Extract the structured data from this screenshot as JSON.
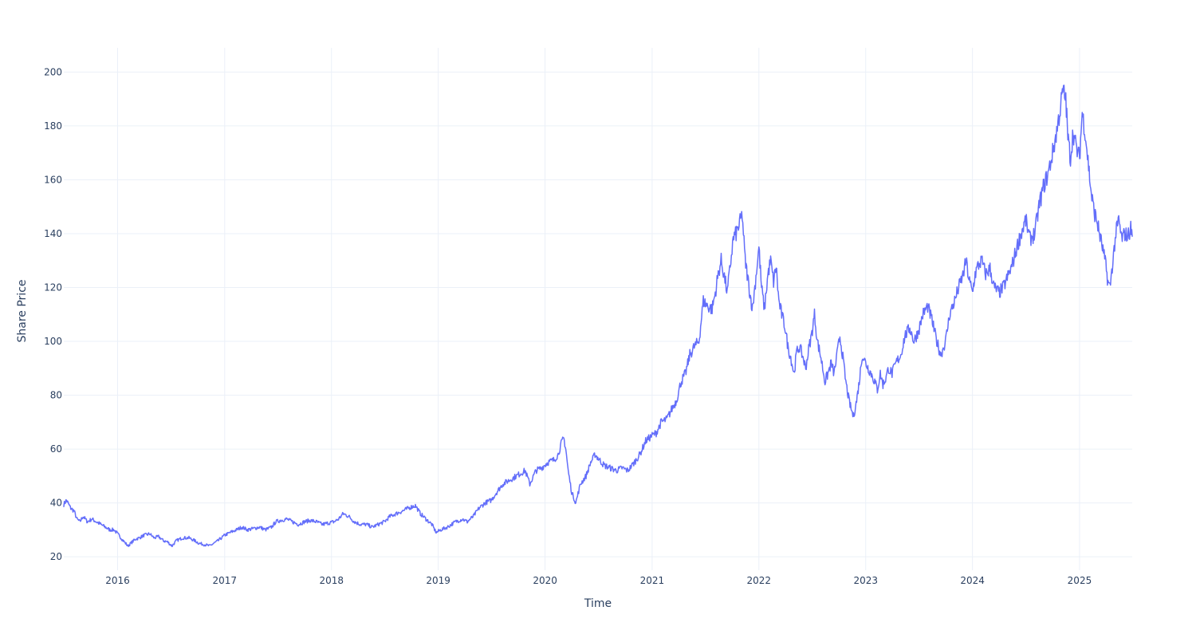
{
  "chart_data": {
    "type": "line",
    "title": "",
    "xlabel": "Time",
    "ylabel": "Share Price",
    "xlim": [
      "2015-07-01",
      "2025-06-30"
    ],
    "ylim": [
      15,
      209
    ],
    "x_ticks": [
      "2016",
      "2017",
      "2018",
      "2019",
      "2020",
      "2021",
      "2022",
      "2023",
      "2024",
      "2025"
    ],
    "y_ticks": [
      20,
      40,
      60,
      80,
      100,
      120,
      140,
      160,
      180,
      200
    ],
    "grid": true,
    "legend": "none",
    "colors": {
      "line": "#636efa",
      "grid": "#ebf0f8",
      "text": "#2a3f5f"
    },
    "series": [
      {
        "x": [
          "2015-07-01",
          "2015-07-10",
          "2015-07-25",
          "2015-08-05",
          "2015-08-15",
          "2015-08-25",
          "2015-09-05",
          "2015-09-20",
          "2015-10-05",
          "2015-10-20",
          "2015-11-05",
          "2015-11-20",
          "2015-12-05",
          "2015-12-20",
          "2016-01-05",
          "2016-01-20",
          "2016-02-05",
          "2016-02-15",
          "2016-03-01",
          "2016-03-15",
          "2016-04-01",
          "2016-04-20",
          "2016-05-05",
          "2016-05-20",
          "2016-06-05",
          "2016-06-20",
          "2016-07-05",
          "2016-07-20",
          "2016-08-10",
          "2016-09-01",
          "2016-09-20",
          "2016-10-05",
          "2016-10-25",
          "2016-11-10",
          "2016-11-25",
          "2016-12-10",
          "2017-01-01",
          "2017-01-20",
          "2017-02-10",
          "2017-03-01",
          "2017-03-20",
          "2017-04-10",
          "2017-05-01",
          "2017-05-20",
          "2017-06-10",
          "2017-06-25",
          "2017-07-10",
          "2017-08-01",
          "2017-08-20",
          "2017-09-10",
          "2017-10-01",
          "2017-10-20",
          "2017-11-10",
          "2017-12-01",
          "2017-12-20",
          "2018-01-10",
          "2018-01-25",
          "2018-02-10",
          "2018-03-01",
          "2018-03-20",
          "2018-04-10",
          "2018-05-01",
          "2018-05-20",
          "2018-06-10",
          "2018-07-01",
          "2018-07-20",
          "2018-08-10",
          "2018-09-01",
          "2018-09-20",
          "2018-10-01",
          "2018-10-15",
          "2018-11-01",
          "2018-11-20",
          "2018-12-10",
          "2018-12-25",
          "2019-01-10",
          "2019-02-01",
          "2019-03-01",
          "2019-03-25",
          "2019-04-10",
          "2019-05-01",
          "2019-05-20",
          "2019-06-10",
          "2019-07-01",
          "2019-07-20",
          "2019-08-10",
          "2019-08-25",
          "2019-09-10",
          "2019-09-25",
          "2019-10-10",
          "2019-10-25",
          "2019-11-10",
          "2019-12-01",
          "2019-12-20",
          "2020-01-10",
          "2020-02-01",
          "2020-02-15",
          "2020-02-25",
          "2020-03-05",
          "2020-03-12",
          "2020-03-20",
          "2020-04-01",
          "2020-04-15",
          "2020-05-01",
          "2020-05-20",
          "2020-06-05",
          "2020-06-20",
          "2020-07-05",
          "2020-07-20",
          "2020-08-10",
          "2020-09-01",
          "2020-09-20",
          "2020-10-10",
          "2020-11-01",
          "2020-11-20",
          "2020-12-10",
          "2021-01-01",
          "2021-01-15",
          "2021-02-01",
          "2021-02-20",
          "2021-03-10",
          "2021-03-25",
          "2021-04-10",
          "2021-04-25",
          "2021-05-10",
          "2021-05-25",
          "2021-06-10",
          "2021-06-25",
          "2021-07-10",
          "2021-07-25",
          "2021-08-05",
          "2021-08-15",
          "2021-08-25",
          "2021-09-05",
          "2021-09-15",
          "2021-09-25",
          "2021-10-05",
          "2021-10-15",
          "2021-10-25",
          "2021-11-05",
          "2021-11-15",
          "2021-11-22",
          "2021-12-01",
          "2021-12-10",
          "2021-12-20",
          "2022-01-01",
          "2022-01-10",
          "2022-01-20",
          "2022-02-01",
          "2022-02-10",
          "2022-02-20",
          "2022-03-01",
          "2022-03-10",
          "2022-03-20",
          "2022-04-01",
          "2022-04-10",
          "2022-04-20",
          "2022-05-01",
          "2022-05-10",
          "2022-05-20",
          "2022-06-01",
          "2022-06-10",
          "2022-06-20",
          "2022-07-01",
          "2022-07-10",
          "2022-07-20",
          "2022-08-01",
          "2022-08-15",
          "2022-08-25",
          "2022-09-05",
          "2022-09-15",
          "2022-09-25",
          "2022-10-05",
          "2022-10-15",
          "2022-10-25",
          "2022-11-05",
          "2022-11-12",
          "2022-11-20",
          "2022-12-01",
          "2022-12-10",
          "2022-12-20",
          "2023-01-01",
          "2023-01-10",
          "2023-01-20",
          "2023-02-01",
          "2023-02-10",
          "2023-02-20",
          "2023-03-01",
          "2023-03-10",
          "2023-03-20",
          "2023-04-01",
          "2023-04-15",
          "2023-05-01",
          "2023-05-15",
          "2023-06-01",
          "2023-06-15",
          "2023-07-01",
          "2023-07-15",
          "2023-08-01",
          "2023-08-15",
          "2023-09-01",
          "2023-09-15",
          "2023-10-01",
          "2023-10-15",
          "2023-11-01",
          "2023-11-15",
          "2023-12-01",
          "2023-12-10",
          "2023-12-20",
          "2024-01-01",
          "2024-01-10",
          "2024-01-20",
          "2024-02-01",
          "2024-02-15",
          "2024-03-01",
          "2024-03-15",
          "2024-04-01",
          "2024-04-15",
          "2024-05-01",
          "2024-05-15",
          "2024-06-01",
          "2024-06-15",
          "2024-07-01",
          "2024-07-15",
          "2024-08-01",
          "2024-08-15",
          "2024-09-01",
          "2024-09-15",
          "2024-10-01",
          "2024-10-15",
          "2024-10-25",
          "2024-11-05",
          "2024-11-15",
          "2024-11-22",
          "2024-12-01",
          "2024-12-10",
          "2024-12-20",
          "2025-01-01",
          "2025-01-10",
          "2025-01-20",
          "2025-02-01",
          "2025-02-10",
          "2025-02-20",
          "2025-03-01",
          "2025-03-10",
          "2025-03-20",
          "2025-04-01",
          "2025-04-08",
          "2025-04-15",
          "2025-04-25",
          "2025-05-05",
          "2025-05-15",
          "2025-05-25",
          "2025-06-05",
          "2025-06-15",
          "2025-06-25",
          "2025-06-30"
        ],
        "y": [
          39.5,
          41,
          38,
          37,
          34,
          33,
          35,
          33,
          34,
          33,
          32,
          31,
          30,
          30,
          28,
          26,
          24,
          25,
          26.5,
          27,
          28,
          28.5,
          27,
          27.5,
          26,
          25.5,
          24,
          26,
          27,
          27,
          26,
          25,
          24.5,
          24,
          25,
          26,
          28,
          29,
          30,
          31,
          30,
          30.5,
          31,
          30,
          31,
          33,
          33.5,
          34,
          33,
          32,
          33,
          33.5,
          33,
          32,
          32.5,
          33,
          34,
          36,
          35,
          33,
          32,
          32,
          31,
          32,
          33,
          35,
          36,
          37,
          38,
          38.5,
          39,
          36,
          34,
          32,
          29,
          30,
          31,
          33,
          34,
          33,
          35,
          38,
          40,
          41,
          44,
          47,
          48,
          49,
          50,
          51,
          52,
          47,
          52,
          53,
          55,
          56,
          58,
          62,
          64,
          60,
          52,
          44,
          40,
          47,
          50,
          55,
          58,
          56,
          54,
          53,
          52,
          53,
          52,
          55,
          58,
          63,
          65,
          66,
          70,
          71,
          75,
          78,
          85,
          88,
          95,
          98,
          100,
          115,
          113,
          112,
          118,
          125,
          130,
          124,
          118,
          128,
          138,
          140,
          143,
          147,
          130,
          125,
          118,
          112,
          122,
          135,
          120,
          112,
          125,
          130,
          122,
          128,
          115,
          110,
          105,
          98,
          94,
          88,
          96,
          98,
          94,
          90,
          97,
          103,
          110,
          100,
          94,
          85,
          88,
          92,
          88,
          95,
          102,
          94,
          85,
          78,
          75,
          72,
          78,
          85,
          95,
          92,
          90,
          88,
          85,
          82,
          88,
          84,
          86,
          90,
          88,
          92,
          95,
          102,
          105,
          100,
          104,
          110,
          113,
          108,
          100,
          95,
          100,
          110,
          115,
          120,
          125,
          130,
          123,
          118,
          125,
          128,
          130,
          125,
          127,
          120,
          118,
          120,
          124,
          128,
          135,
          140,
          145,
          138,
          140,
          150,
          158,
          162,
          170,
          178,
          185,
          193,
          190,
          176,
          168,
          178,
          172,
          168,
          185,
          178,
          165,
          155,
          148,
          145,
          140,
          135,
          128,
          122,
          120,
          130,
          140,
          145,
          138,
          140,
          139,
          142,
          139
        ]
      }
    ]
  }
}
